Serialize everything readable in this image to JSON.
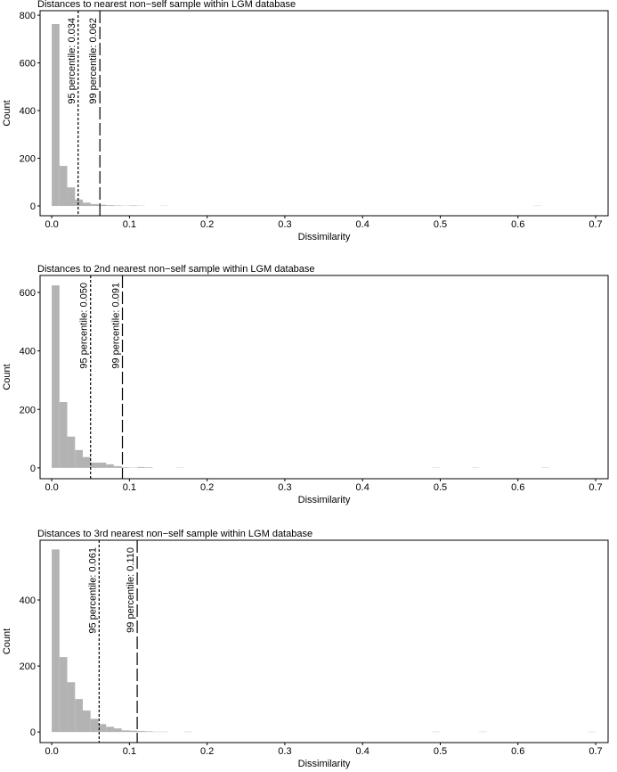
{
  "chart_data": [
    {
      "type": "histogram",
      "title": "Distances to nearest non−self sample within LGM database",
      "x_label": "Dissimilarity",
      "y_label": "Count",
      "color": "#b3b3b3",
      "bins": [
        0,
        0.01,
        0.02,
        0.03,
        0.04,
        0.05,
        0.06,
        0.07,
        0.08,
        0.09,
        0.1,
        0.11,
        0.12,
        0.13,
        0.14,
        0.15,
        0.16,
        0.17,
        0.18,
        0.19,
        0.2,
        0.21,
        0.22,
        0.23,
        0.24,
        0.25,
        0.26,
        0.27,
        0.28,
        0.29,
        0.3,
        0.31,
        0.32,
        0.33,
        0.34,
        0.35,
        0.36,
        0.37,
        0.38,
        0.39,
        0.4,
        0.41,
        0.42,
        0.43,
        0.44,
        0.45,
        0.46,
        0.47,
        0.48,
        0.49,
        0.5,
        0.51,
        0.52,
        0.53,
        0.54,
        0.55,
        0.56,
        0.57,
        0.58,
        0.59,
        0.6,
        0.61,
        0.62,
        0.63,
        0.64,
        0.65,
        0.66,
        0.67,
        0.68,
        0.69,
        0.7
      ],
      "values": [
        763,
        168,
        78,
        27,
        14,
        8,
        5,
        3,
        2,
        1,
        2,
        1,
        0,
        0,
        1,
        0,
        0,
        0,
        0,
        0,
        0,
        0,
        0,
        0,
        0,
        0,
        0,
        0,
        0,
        0,
        0,
        0,
        0,
        0,
        0,
        0,
        0,
        0,
        0,
        0,
        0,
        0,
        0,
        0,
        0,
        0,
        0,
        0,
        0,
        0,
        0,
        0,
        0,
        0,
        0,
        0,
        0,
        0,
        0,
        0,
        0,
        0,
        1,
        0,
        0,
        0,
        0,
        0,
        0,
        0
      ],
      "xlim": [
        -0.015,
        0.716
      ],
      "ylim": [
        -41,
        819
      ],
      "xticks": [
        {
          "value": 0,
          "label": "0.0"
        },
        0.1,
        0.2,
        0.3,
        0.4,
        0.5,
        0.6,
        0.7
      ],
      "yticks": [
        0,
        200,
        400,
        600,
        800
      ],
      "grid": false,
      "vlines": [
        {
          "value": 0.034,
          "label": "95 percentile: 0.034",
          "dash": "short"
        },
        {
          "value": 0.062,
          "label": "99 percentile: 0.062",
          "dash": "long"
        }
      ]
    },
    {
      "type": "histogram",
      "title": "Distances to 2nd nearest non−self sample within LGM database",
      "x_label": "Dissimilarity",
      "y_label": "Count",
      "color": "#b3b3b3",
      "bins": [
        0,
        0.01,
        0.02,
        0.03,
        0.04,
        0.05,
        0.06,
        0.07,
        0.08,
        0.09,
        0.1,
        0.11,
        0.12,
        0.13,
        0.14,
        0.15,
        0.16,
        0.17,
        0.18,
        0.19,
        0.2,
        0.21,
        0.22,
        0.23,
        0.24,
        0.25,
        0.26,
        0.27,
        0.28,
        0.29,
        0.3,
        0.31,
        0.32,
        0.33,
        0.34,
        0.35,
        0.36,
        0.37,
        0.38,
        0.39,
        0.4,
        0.41,
        0.42,
        0.43,
        0.44,
        0.45,
        0.46,
        0.47,
        0.48,
        0.49,
        0.5,
        0.51,
        0.52,
        0.53,
        0.54,
        0.55,
        0.56,
        0.57,
        0.58,
        0.59,
        0.6,
        0.61,
        0.62,
        0.63,
        0.64,
        0.65,
        0.66,
        0.67,
        0.68,
        0.69,
        0.7
      ],
      "values": [
        624,
        225,
        107,
        61,
        37,
        18,
        18,
        12,
        6,
        2,
        1,
        3,
        2,
        0,
        0,
        0,
        1,
        0,
        0,
        0,
        0,
        0,
        0,
        0,
        0,
        0,
        0,
        0,
        0,
        0,
        0,
        0,
        0,
        0,
        0,
        0,
        0,
        0,
        0,
        0,
        0,
        0,
        0,
        0,
        0,
        0,
        0,
        0,
        0,
        1,
        0,
        0,
        0,
        0,
        1,
        0,
        0,
        0,
        0,
        0,
        0,
        0,
        0,
        1,
        0,
        0,
        0,
        0,
        0,
        0
      ],
      "xlim": [
        -0.015,
        0.716
      ],
      "ylim": [
        -37,
        658
      ],
      "xticks": [
        {
          "value": 0,
          "label": "0.0"
        },
        0.1,
        0.2,
        0.3,
        0.4,
        0.5,
        0.6,
        0.7
      ],
      "yticks": [
        0,
        200,
        400,
        600
      ],
      "grid": false,
      "vlines": [
        {
          "value": 0.05,
          "label": "95 percentile: 0.050",
          "dash": "short"
        },
        {
          "value": 0.091,
          "label": "99 percentile: 0.091",
          "dash": "long"
        }
      ]
    },
    {
      "type": "histogram",
      "title": "Distances to 3rd nearest non−self sample within LGM database",
      "x_label": "Dissimilarity",
      "y_label": "Count",
      "color": "#b3b3b3",
      "bins": [
        0,
        0.01,
        0.02,
        0.03,
        0.04,
        0.05,
        0.06,
        0.07,
        0.08,
        0.09,
        0.1,
        0.11,
        0.12,
        0.13,
        0.14,
        0.15,
        0.16,
        0.17,
        0.18,
        0.19,
        0.2,
        0.21,
        0.22,
        0.23,
        0.24,
        0.25,
        0.26,
        0.27,
        0.28,
        0.29,
        0.3,
        0.31,
        0.32,
        0.33,
        0.34,
        0.35,
        0.36,
        0.37,
        0.38,
        0.39,
        0.4,
        0.41,
        0.42,
        0.43,
        0.44,
        0.45,
        0.46,
        0.47,
        0.48,
        0.49,
        0.5,
        0.51,
        0.52,
        0.53,
        0.54,
        0.55,
        0.56,
        0.57,
        0.58,
        0.59,
        0.6,
        0.61,
        0.62,
        0.63,
        0.64,
        0.65,
        0.66,
        0.67,
        0.68,
        0.69,
        0.7
      ],
      "values": [
        553,
        227,
        151,
        100,
        65,
        40,
        24,
        16,
        11,
        5,
        4,
        3,
        2,
        1,
        1,
        0,
        0,
        1,
        0,
        0,
        0,
        0,
        0,
        0,
        0,
        0,
        0,
        0,
        0,
        0,
        0,
        0,
        0,
        0,
        0,
        0,
        0,
        0,
        0,
        0,
        0,
        0,
        0,
        0,
        0,
        0,
        0,
        0,
        0,
        1,
        0,
        0,
        0,
        0,
        0,
        1,
        0,
        0,
        0,
        0,
        0,
        0,
        0,
        0,
        0,
        0,
        0,
        0,
        0,
        1
      ],
      "xlim": [
        -0.015,
        0.716
      ],
      "ylim": [
        -32,
        581
      ],
      "xticks": [
        {
          "value": 0,
          "label": "0.0"
        },
        0.1,
        0.2,
        0.3,
        0.4,
        0.5,
        0.6,
        0.7
      ],
      "yticks": [
        0,
        200,
        400
      ],
      "grid": false,
      "vlines": [
        {
          "value": 0.061,
          "label": "95 percentile: 0.061",
          "dash": "short"
        },
        {
          "value": 0.11,
          "label": "99 percentile: 0.110",
          "dash": "long"
        }
      ]
    }
  ]
}
